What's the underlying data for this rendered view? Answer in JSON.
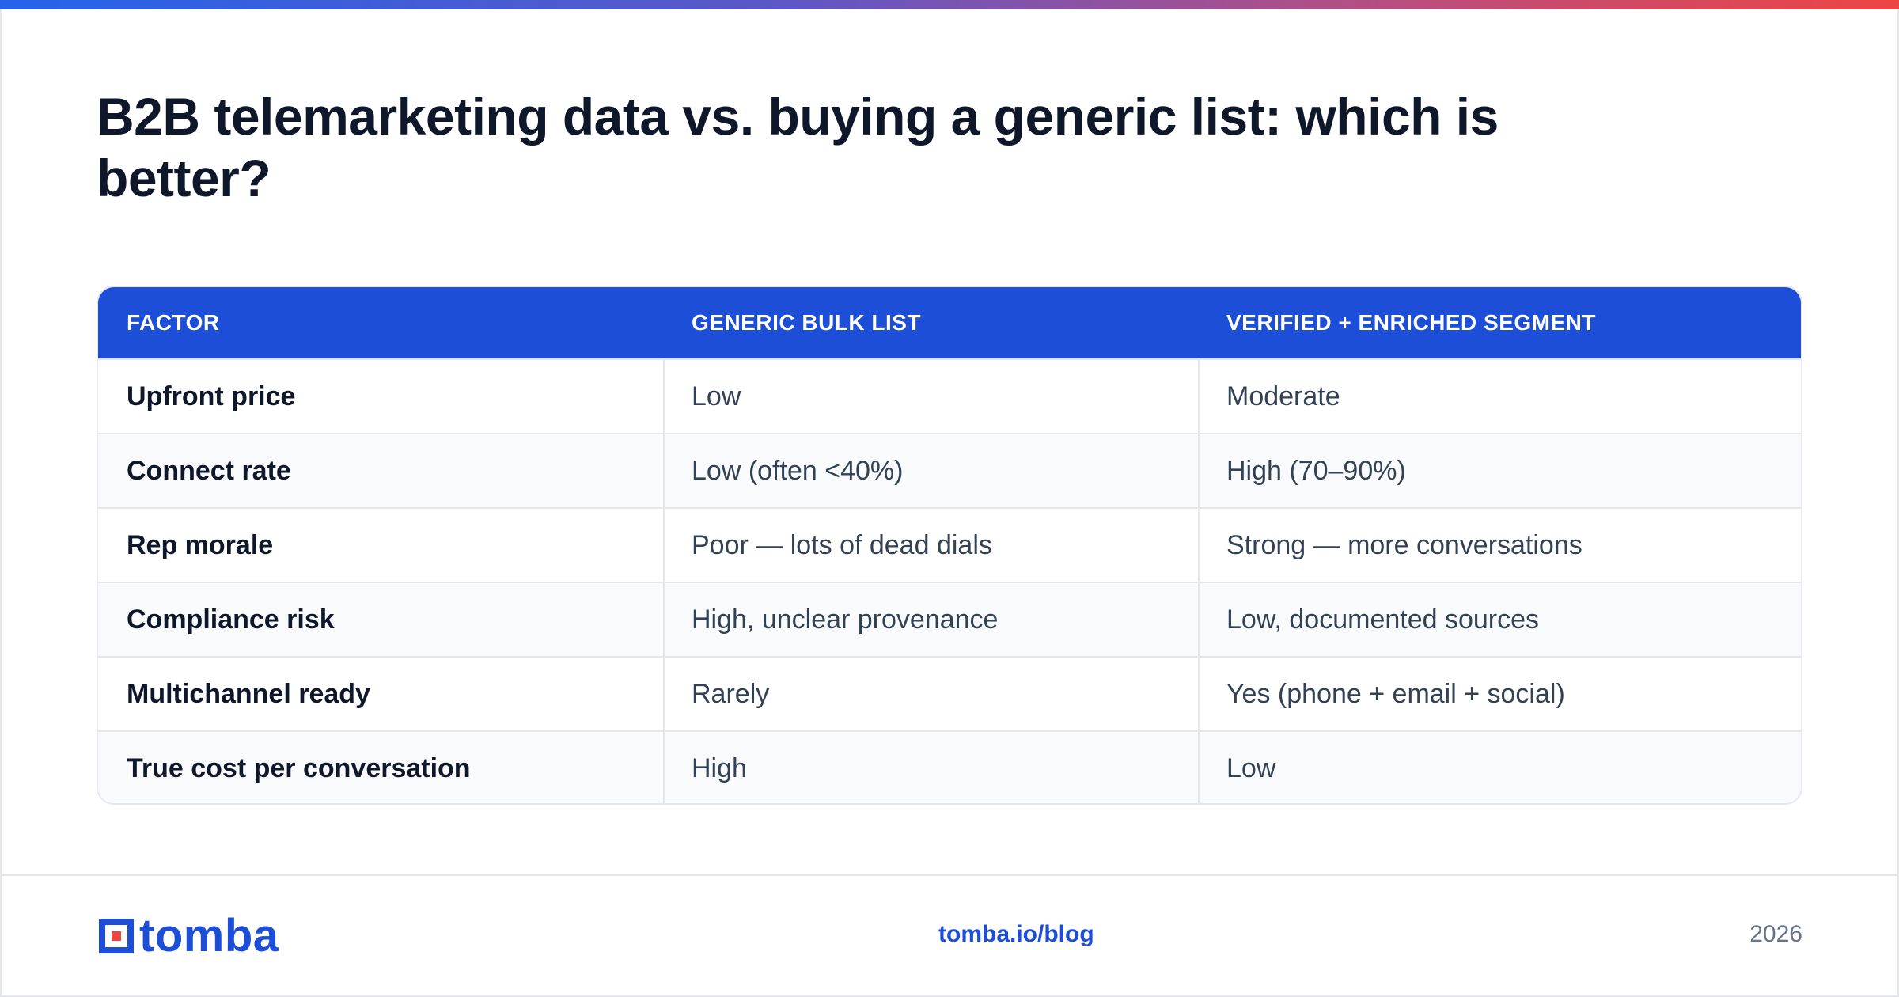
{
  "header": {
    "title": "B2B telemarketing data vs. buying a generic list: which is better?"
  },
  "table": {
    "columns": [
      "FACTOR",
      "GENERIC BULK LIST",
      "VERIFIED + ENRICHED SEGMENT"
    ],
    "rows": [
      [
        "Upfront price",
        "Low",
        "Moderate"
      ],
      [
        "Connect rate",
        "Low (often <40%)",
        "High (70–90%)"
      ],
      [
        "Rep morale",
        "Poor — lots of dead dials",
        "Strong — more conversations"
      ],
      [
        "Compliance risk",
        "High, unclear provenance",
        "Low, documented sources"
      ],
      [
        "Multichannel ready",
        "Rarely",
        "Yes (phone + email + social)"
      ],
      [
        "True cost per conversation",
        "High",
        "Low"
      ]
    ]
  },
  "footer": {
    "logo_text": "tomba",
    "link": "tomba.io/blog",
    "year": "2026"
  },
  "colors": {
    "accent": "#1d4ed8",
    "title": "#0f172a",
    "gradient_start": "#2563eb",
    "gradient_end": "#ef4444"
  }
}
